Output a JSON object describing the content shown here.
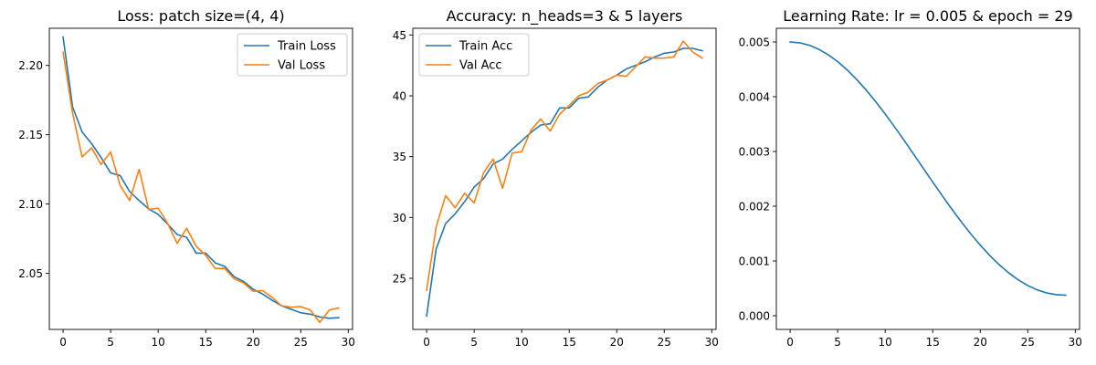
{
  "chart_data": [
    {
      "type": "line",
      "title": "Loss: patch size=(4, 4)",
      "xlabel": "",
      "ylabel": "",
      "x": [
        0,
        1,
        2,
        3,
        4,
        5,
        6,
        7,
        8,
        9,
        10,
        11,
        12,
        13,
        14,
        15,
        16,
        17,
        18,
        19,
        20,
        21,
        22,
        23,
        24,
        25,
        26,
        27,
        28,
        29
      ],
      "xlim": [
        -1.45,
        30.45
      ],
      "ylim": [
        2.0095,
        2.2268
      ],
      "xticks": [
        "0",
        "5",
        "10",
        "15",
        "20",
        "25",
        "30"
      ],
      "yticks": [
        "2.05",
        "2.10",
        "2.15",
        "2.20"
      ],
      "grid": false,
      "legend": "upper right",
      "series": [
        {
          "name": "Train Loss",
          "color": "#1f77b4",
          "values": [
            2.2205,
            2.17,
            2.152,
            2.1435,
            2.1335,
            2.1225,
            2.1205,
            2.109,
            2.1025,
            2.0965,
            2.0925,
            2.0855,
            2.078,
            2.076,
            2.0645,
            2.0645,
            2.0575,
            2.055,
            2.0475,
            2.044,
            2.0385,
            2.035,
            2.0305,
            2.0265,
            2.024,
            2.0215,
            2.0205,
            2.0185,
            2.0175,
            2.018
          ]
        },
        {
          "name": "Val Loss",
          "color": "#ff7f0e",
          "values": [
            2.2095,
            2.1655,
            2.134,
            2.1405,
            2.1285,
            2.1375,
            2.1135,
            2.1025,
            2.125,
            2.096,
            2.097,
            2.086,
            2.0715,
            2.0825,
            2.0695,
            2.063,
            2.0535,
            2.0535,
            2.046,
            2.043,
            2.037,
            2.0375,
            2.0325,
            2.0265,
            2.0255,
            2.026,
            2.0235,
            2.0145,
            2.0235,
            2.025
          ]
        }
      ]
    },
    {
      "type": "line",
      "title": "Accuracy: n_heads=3 & 5 layers",
      "xlabel": "",
      "ylabel": "",
      "x": [
        0,
        1,
        2,
        3,
        4,
        5,
        6,
        7,
        8,
        9,
        10,
        11,
        12,
        13,
        14,
        15,
        16,
        17,
        18,
        19,
        20,
        21,
        22,
        23,
        24,
        25,
        26,
        27,
        28,
        29
      ],
      "xlim": [
        -1.45,
        30.45
      ],
      "ylim": [
        20.8,
        45.55
      ],
      "xticks": [
        "0",
        "5",
        "10",
        "15",
        "20",
        "25",
        "30"
      ],
      "yticks": [
        "25",
        "30",
        "35",
        "40",
        "45"
      ],
      "grid": false,
      "legend": "upper left",
      "series": [
        {
          "name": "Train Acc",
          "color": "#1f77b4",
          "values": [
            21.9,
            27.4,
            29.5,
            30.3,
            31.3,
            32.5,
            33.2,
            34.4,
            34.8,
            35.6,
            36.3,
            37.0,
            37.6,
            37.7,
            39.0,
            39.0,
            39.8,
            39.9,
            40.7,
            41.3,
            41.7,
            42.2,
            42.5,
            42.8,
            43.2,
            43.5,
            43.6,
            43.9,
            43.9,
            43.7
          ]
        },
        {
          "name": "Val Acc",
          "color": "#ff7f0e",
          "values": [
            24.0,
            29.2,
            31.8,
            30.8,
            32.0,
            31.2,
            33.7,
            34.8,
            32.4,
            35.3,
            35.4,
            37.2,
            38.1,
            37.1,
            38.5,
            39.2,
            40.0,
            40.3,
            41.0,
            41.3,
            41.7,
            41.6,
            42.4,
            43.2,
            43.1,
            43.1,
            43.2,
            44.5,
            43.6,
            43.1
          ]
        }
      ]
    },
    {
      "type": "line",
      "title": "Learning Rate: lr = 0.005 & epoch = 29",
      "xlabel": "",
      "ylabel": "",
      "x": [
        0,
        1,
        2,
        3,
        4,
        5,
        6,
        7,
        8,
        9,
        10,
        11,
        12,
        13,
        14,
        15,
        16,
        17,
        18,
        19,
        20,
        21,
        22,
        23,
        24,
        25,
        26,
        27,
        28,
        29
      ],
      "xlim": [
        -1.45,
        30.45
      ],
      "ylim": [
        -0.00025,
        0.00525
      ],
      "xticks": [
        "0",
        "5",
        "10",
        "15",
        "20",
        "25",
        "30"
      ],
      "yticks": [
        "0.000",
        "0.001",
        "0.002",
        "0.003",
        "0.004",
        "0.005"
      ],
      "grid": false,
      "legend": "none",
      "series": [
        {
          "name": "",
          "color": "#1f77b4",
          "values": [
            0.005,
            0.004985,
            0.004941,
            0.004868,
            0.004768,
            0.004641,
            0.00449,
            0.004316,
            0.004122,
            0.003911,
            0.003685,
            0.003447,
            0.003201,
            0.002949,
            0.002695,
            0.002442,
            0.002192,
            0.00195,
            0.001717,
            0.001496,
            0.00129,
            0.001101,
            0.000931,
            0.000782,
            0.000655,
            0.000551,
            0.000472,
            0.000416,
            0.000385,
            0.000375
          ]
        }
      ]
    }
  ]
}
